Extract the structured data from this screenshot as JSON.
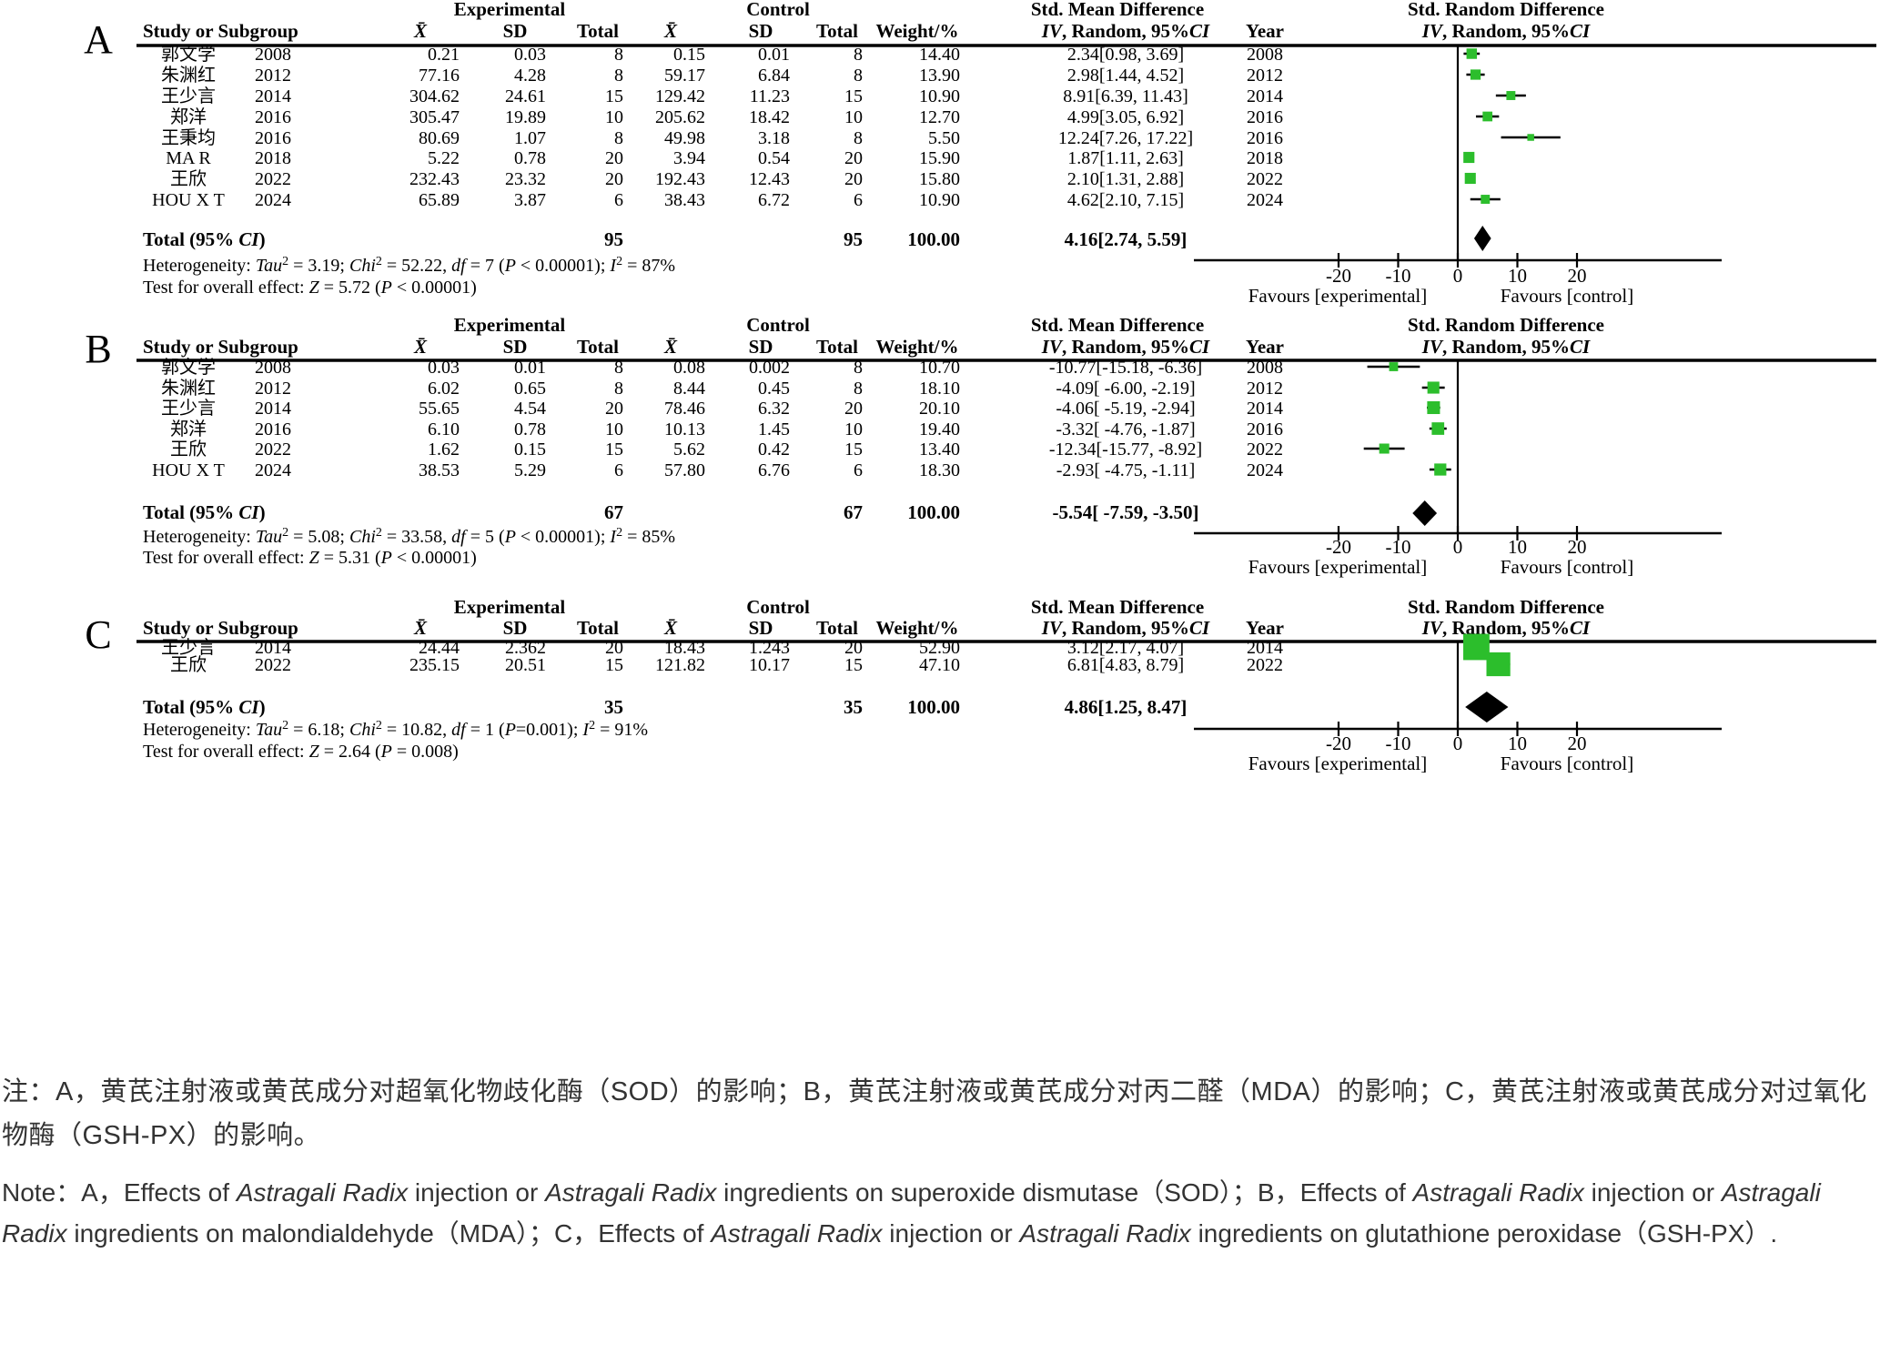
{
  "figure": {
    "colors": {
      "marker_green": "#2cbe2c",
      "line": "#000000",
      "note_text": "#333333"
    },
    "headers": {
      "experimental": "Experimental",
      "control": "Control",
      "smd": "Std. Mean Difference",
      "srd": "Std. Random Difference",
      "study": "Study or Subgroup",
      "mean": "X̄",
      "sd": "SD",
      "total": "Total",
      "weight": "Weight/%",
      "year": "Year",
      "iv_segments": [
        {
          "t": "IV",
          "i": true
        },
        {
          "t": ", Random, 95%",
          "i": false
        },
        {
          "t": "CI",
          "i": true
        }
      ]
    },
    "axis": {
      "ticks": [
        "-20",
        "-10",
        "0",
        "10",
        "20"
      ],
      "favours_left": "Favours [experimental]",
      "favours_right": "Favours [control]"
    },
    "total_label_segments": [
      {
        "t": "Total (95% "
      },
      {
        "t": "CI",
        "i": true
      },
      {
        "t": ")"
      }
    ],
    "het_prefix": "Heterogeneity:  ",
    "test_prefix": "Test for overall effect: ",
    "notes": {
      "chinese": [
        {
          "t": "注：A，黄芪注射液或黄芪成分对超氧化物歧化酶（SOD）的影响；B，黄芪注射液或黄芪成分对丙二醛（MDA）的影响；C，黄芪注射液或黄芪成分对过氧化物酶（GSH-PX）的影响。"
        }
      ],
      "english": [
        {
          "t": "Note：A，Effects of "
        },
        {
          "t": "Astragali Radix",
          "i": true
        },
        {
          "t": " injection or "
        },
        {
          "t": "Astragali Radix",
          "i": true
        },
        {
          "t": " ingredients on superoxide dismutase（SOD）；B，Effects of "
        },
        {
          "t": "Astragali Radix",
          "i": true
        },
        {
          "t": " injection or "
        },
        {
          "t": "Astragali Radix",
          "i": true
        },
        {
          "t": " ingredients on malondialdehyde（MDA）；C，Effects of "
        },
        {
          "t": "Astragali Radix",
          "i": true
        },
        {
          "t": " injection or "
        },
        {
          "t": "Astragali Radix",
          "i": true
        },
        {
          "t": " ingredients on glutathione peroxidase（GSH-PX）."
        }
      ]
    }
  },
  "chart_data": [
    {
      "type": "scatter",
      "subtype": "forest-plot",
      "panel_label": "A",
      "effect_measure": "Std. Mean Difference",
      "plot_title": "Std. Random Difference",
      "x_ticks": [
        -20,
        -10,
        0,
        10,
        20
      ],
      "studies": [
        {
          "study": "郭文学",
          "year": "2008",
          "exp_mean": "0.21",
          "exp_sd": "0.03",
          "exp_total": "8",
          "ctrl_mean": "0.15",
          "ctrl_sd": "0.01",
          "ctrl_total": "8",
          "weight": "14.40",
          "est": 2.34,
          "lo": 0.98,
          "hi": 3.69,
          "ci_text": "2.34[0.98,  3.69]"
        },
        {
          "study": "朱渊红",
          "year": "2012",
          "exp_mean": "77.16",
          "exp_sd": "4.28",
          "exp_total": "8",
          "ctrl_mean": "59.17",
          "ctrl_sd": "6.84",
          "ctrl_total": "8",
          "weight": "13.90",
          "est": 2.98,
          "lo": 1.44,
          "hi": 4.52,
          "ci_text": "2.98[1.44,  4.52]"
        },
        {
          "study": "王少言",
          "year": "2014",
          "exp_mean": "304.62",
          "exp_sd": "24.61",
          "exp_total": "15",
          "ctrl_mean": "129.42",
          "ctrl_sd": "11.23",
          "ctrl_total": "15",
          "weight": "10.90",
          "est": 8.91,
          "lo": 6.39,
          "hi": 11.43,
          "ci_text": "8.91[6.39, 11.43]"
        },
        {
          "study": "郑洋",
          "year": "2016",
          "exp_mean": "305.47",
          "exp_sd": "19.89",
          "exp_total": "10",
          "ctrl_mean": "205.62",
          "ctrl_sd": "18.42",
          "ctrl_total": "10",
          "weight": "12.70",
          "est": 4.99,
          "lo": 3.05,
          "hi": 6.92,
          "ci_text": "4.99[3.05,  6.92]"
        },
        {
          "study": "王秉均",
          "year": "2016",
          "exp_mean": "80.69",
          "exp_sd": "1.07",
          "exp_total": "8",
          "ctrl_mean": "49.98",
          "ctrl_sd": "3.18",
          "ctrl_total": "8",
          "weight": "5.50",
          "est": 12.24,
          "lo": 7.26,
          "hi": 17.22,
          "ci_text": "12.24[7.26, 17.22]"
        },
        {
          "study": "MA R",
          "year": "2018",
          "exp_mean": "5.22",
          "exp_sd": "0.78",
          "exp_total": "20",
          "ctrl_mean": "3.94",
          "ctrl_sd": "0.54",
          "ctrl_total": "20",
          "weight": "15.90",
          "est": 1.87,
          "lo": 1.11,
          "hi": 2.63,
          "ci_text": "1.87[1.11,  2.63]"
        },
        {
          "study": "王欣",
          "year": "2022",
          "exp_mean": "232.43",
          "exp_sd": "23.32",
          "exp_total": "20",
          "ctrl_mean": "192.43",
          "ctrl_sd": "12.43",
          "ctrl_total": "20",
          "weight": "15.80",
          "est": 2.1,
          "lo": 1.31,
          "hi": 2.88,
          "ci_text": "2.10[1.31,  2.88]"
        },
        {
          "study": "HOU X T",
          "year": "2024",
          "exp_mean": "65.89",
          "exp_sd": "3.87",
          "exp_total": "6",
          "ctrl_mean": "38.43",
          "ctrl_sd": "6.72",
          "ctrl_total": "6",
          "weight": "10.90",
          "est": 4.62,
          "lo": 2.1,
          "hi": 7.15,
          "ci_text": "4.62[2.10,  7.15]"
        }
      ],
      "total": {
        "exp_total": "95",
        "ctrl_total": "95",
        "weight": "100.00",
        "est": 4.16,
        "lo": 2.74,
        "hi": 5.59,
        "ci_text": "4.16[2.74,  5.59]"
      },
      "heterogeneity": {
        "tau2": "3.19",
        "chi2": "52.22",
        "df": "7",
        "p_rest": " < 0.00001",
        "i2": "87%"
      },
      "overall": {
        "z": "5.72",
        "p_rest": " < 0.00001"
      }
    },
    {
      "type": "scatter",
      "subtype": "forest-plot",
      "panel_label": "B",
      "effect_measure": "Std. Mean Difference",
      "plot_title": "Std. Random Difference",
      "x_ticks": [
        -20,
        -10,
        0,
        10,
        20
      ],
      "studies": [
        {
          "study": "郭文学",
          "year": "2008",
          "exp_mean": "0.03",
          "exp_sd": "0.01",
          "exp_total": "8",
          "ctrl_mean": "0.08",
          "ctrl_sd": "0.002",
          "ctrl_total": "8",
          "weight": "10.70",
          "est": -10.77,
          "lo": -15.18,
          "hi": -6.36,
          "ci_text": "-10.77[-15.18, -6.36]"
        },
        {
          "study": "朱渊红",
          "year": "2012",
          "exp_mean": "6.02",
          "exp_sd": "0.65",
          "exp_total": "8",
          "ctrl_mean": "8.44",
          "ctrl_sd": "0.45",
          "ctrl_total": "8",
          "weight": "18.10",
          "est": -4.09,
          "lo": -6.0,
          "hi": -2.19,
          "ci_text": "-4.09[ -6.00, -2.19]"
        },
        {
          "study": "王少言",
          "year": "2014",
          "exp_mean": "55.65",
          "exp_sd": "4.54",
          "exp_total": "20",
          "ctrl_mean": "78.46",
          "ctrl_sd": "6.32",
          "ctrl_total": "20",
          "weight": "20.10",
          "est": -4.06,
          "lo": -5.19,
          "hi": -2.94,
          "ci_text": "-4.06[ -5.19, -2.94]"
        },
        {
          "study": "郑洋",
          "year": "2016",
          "exp_mean": "6.10",
          "exp_sd": "0.78",
          "exp_total": "10",
          "ctrl_mean": "10.13",
          "ctrl_sd": "1.45",
          "ctrl_total": "10",
          "weight": "19.40",
          "est": -3.32,
          "lo": -4.76,
          "hi": -1.87,
          "ci_text": "-3.32[ -4.76, -1.87]"
        },
        {
          "study": "王欣",
          "year": "2022",
          "exp_mean": "1.62",
          "exp_sd": "0.15",
          "exp_total": "15",
          "ctrl_mean": "5.62",
          "ctrl_sd": "0.42",
          "ctrl_total": "15",
          "weight": "13.40",
          "est": -12.34,
          "lo": -15.77,
          "hi": -8.92,
          "ci_text": "-12.34[-15.77, -8.92]"
        },
        {
          "study": "HOU X T",
          "year": "2024",
          "exp_mean": "38.53",
          "exp_sd": "5.29",
          "exp_total": "6",
          "ctrl_mean": "57.80",
          "ctrl_sd": "6.76",
          "ctrl_total": "6",
          "weight": "18.30",
          "est": -2.93,
          "lo": -4.75,
          "hi": -1.11,
          "ci_text": "-2.93[ -4.75, -1.11]"
        }
      ],
      "total": {
        "exp_total": "67",
        "ctrl_total": "67",
        "weight": "100.00",
        "est": -5.54,
        "lo": -7.59,
        "hi": -3.5,
        "ci_text": "-5.54[ -7.59, -3.50]"
      },
      "heterogeneity": {
        "tau2": "5.08",
        "chi2": "33.58",
        "df": "5",
        "p_rest": " < 0.00001",
        "i2": "85%"
      },
      "overall": {
        "z": "5.31",
        "p_rest": " < 0.00001"
      }
    },
    {
      "type": "scatter",
      "subtype": "forest-plot",
      "panel_label": "C",
      "effect_measure": "Std. Mean Difference",
      "plot_title": "Std. Random Difference",
      "x_ticks": [
        -20,
        -10,
        0,
        10,
        20
      ],
      "studies": [
        {
          "study": "王少言",
          "year": "2014",
          "exp_mean": "24.44",
          "exp_sd": "2.362",
          "exp_total": "20",
          "ctrl_mean": "18.43",
          "ctrl_sd": "1.243",
          "ctrl_total": "20",
          "weight": "52.90",
          "est": 3.12,
          "lo": 2.17,
          "hi": 4.07,
          "ci_text": "3.12[2.17, 4.07]"
        },
        {
          "study": "王欣",
          "year": "2022",
          "exp_mean": "235.15",
          "exp_sd": "20.51",
          "exp_total": "15",
          "ctrl_mean": "121.82",
          "ctrl_sd": "10.17",
          "ctrl_total": "15",
          "weight": "47.10",
          "est": 6.81,
          "lo": 4.83,
          "hi": 8.79,
          "ci_text": "6.81[4.83, 8.79]"
        }
      ],
      "total": {
        "exp_total": "35",
        "ctrl_total": "35",
        "weight": "100.00",
        "est": 4.86,
        "lo": 1.25,
        "hi": 8.47,
        "ci_text": "4.86[1.25, 8.47]"
      },
      "heterogeneity": {
        "tau2": "6.18",
        "chi2": "10.82",
        "df": "1",
        "p_rest": "=0.001",
        "i2": "91%"
      },
      "overall": {
        "z": "2.64",
        "p_rest": " = 0.008"
      }
    }
  ]
}
